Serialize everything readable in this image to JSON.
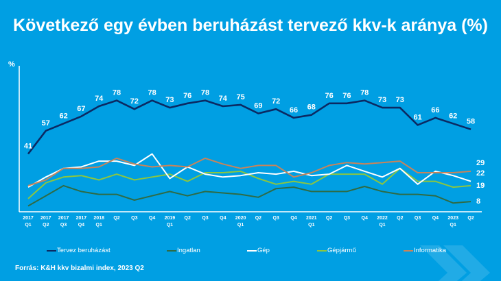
{
  "chart_data": {
    "type": "line",
    "title": "Következő egy évben beruházást tervező kkv-k aránya (%)",
    "ylabel": "%",
    "xlabel": "",
    "ylim": [
      0,
      100
    ],
    "grid": false,
    "legend_position": "bottom",
    "x_labels": [
      [
        "2017",
        "Q1"
      ],
      [
        "2017",
        "Q2"
      ],
      [
        "2017",
        "Q3"
      ],
      [
        "2017",
        "Q4"
      ],
      [
        "2018",
        "Q1"
      ],
      [
        "Q2",
        ""
      ],
      [
        "Q3",
        ""
      ],
      [
        "Q4",
        ""
      ],
      [
        "2019",
        "Q1"
      ],
      [
        "Q2",
        ""
      ],
      [
        "Q3",
        ""
      ],
      [
        "Q4",
        ""
      ],
      [
        "2020",
        "Q1"
      ],
      [
        "Q2",
        ""
      ],
      [
        "Q3",
        ""
      ],
      [
        "Q4",
        ""
      ],
      [
        "2021",
        "Q1"
      ],
      [
        "Q2",
        ""
      ],
      [
        "Q3",
        ""
      ],
      [
        "Q4",
        ""
      ],
      [
        "2022",
        "Q1"
      ],
      [
        "Q2",
        ""
      ],
      [
        "Q3",
        ""
      ],
      [
        "Q4",
        ""
      ],
      [
        "2023",
        "Q1"
      ],
      [
        "Q2",
        ""
      ]
    ],
    "series": [
      {
        "name": "Tervez beruházást",
        "color": "#0b2a63",
        "values": [
          41,
          57,
          62,
          67,
          74,
          78,
          72,
          78,
          73,
          76,
          78,
          74,
          75,
          69,
          72,
          66,
          68,
          76,
          76,
          78,
          73,
          73,
          61,
          66,
          62,
          58
        ],
        "labels": [
          "41",
          "57",
          "62",
          "67",
          "74",
          "78",
          "72",
          "78",
          "73",
          "76",
          "78",
          "74",
          "75",
          "69",
          "72",
          "66",
          "68",
          "76",
          "76",
          "78",
          "73",
          "73",
          "61",
          "66",
          "62",
          "58"
        ]
      },
      {
        "name": "Ingatlan",
        "color": "#2e6b45",
        "values": [
          5,
          12,
          19,
          15,
          13,
          13,
          9,
          12,
          15,
          12,
          15,
          14,
          13,
          11,
          17,
          18,
          15,
          15,
          15,
          18.5,
          15,
          13,
          13,
          12,
          7,
          8
        ],
        "end_label": "8"
      },
      {
        "name": "Gép",
        "color": "#ffffff",
        "values": [
          18,
          25,
          31,
          32,
          36,
          36,
          33,
          41,
          24,
          32,
          27,
          25,
          26,
          28,
          27,
          29,
          26,
          27,
          33,
          29,
          25,
          31,
          20,
          29,
          26,
          22
        ],
        "end_label": "22"
      },
      {
        "name": "Gépjármű",
        "color": "#8cc63f",
        "values": [
          10,
          21,
          25,
          26,
          23,
          27,
          23,
          25,
          27,
          22,
          28,
          28,
          29,
          24,
          20,
          22,
          20,
          27,
          27,
          27,
          20,
          31,
          22,
          22,
          18,
          19
        ],
        "end_label": "19"
      },
      {
        "name": "Informatika",
        "color": "#c8845a",
        "values": [
          19,
          23,
          31,
          31,
          32,
          38,
          34,
          32,
          33,
          32,
          38,
          34,
          31,
          33,
          33,
          25,
          28,
          33,
          35,
          34,
          35,
          36,
          28,
          28,
          28,
          29
        ],
        "end_label": "29"
      }
    ]
  },
  "unit_label": "%",
  "source": "Forrás: K&H kkv bizalmi index, 2023 Q2"
}
